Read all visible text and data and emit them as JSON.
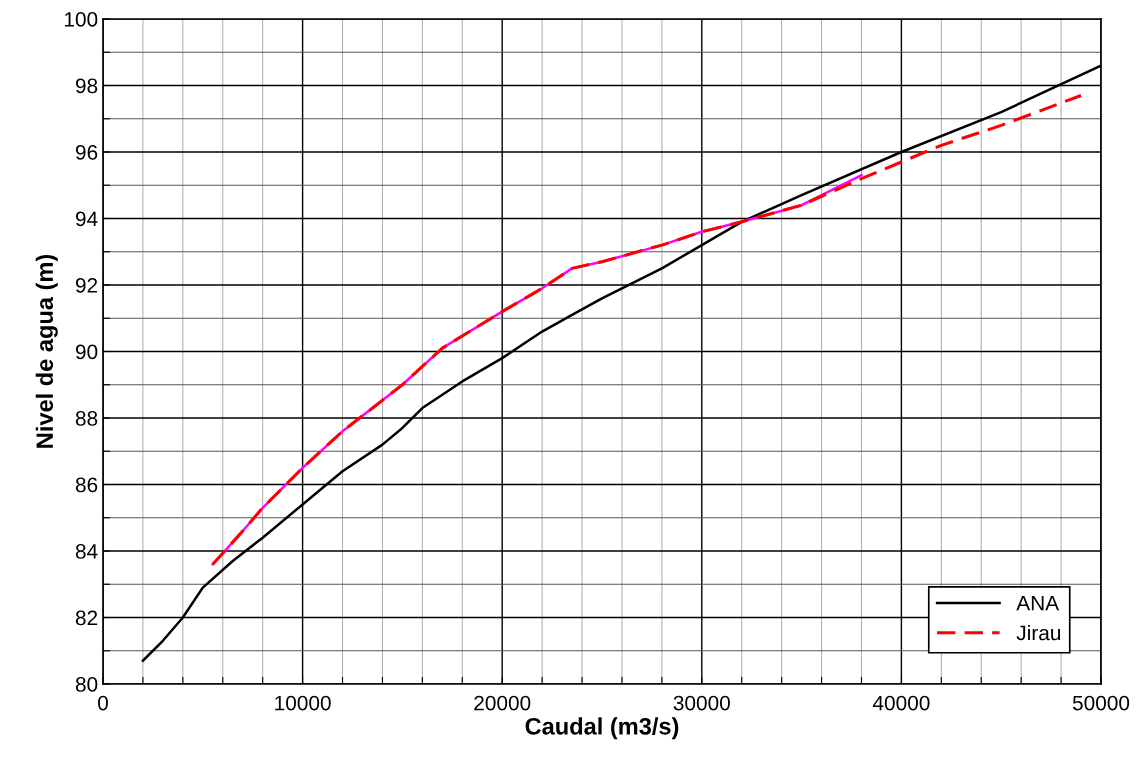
{
  "chart_data": {
    "type": "line",
    "xlabel": "Caudal (m3/s)",
    "ylabel": "Nivel de agua (m)",
    "xlim": [
      0,
      50000
    ],
    "ylim": [
      80,
      100
    ],
    "xticks": [
      0,
      {
        "value": 2000,
        "label": null
      },
      {
        "value": 4000,
        "label": null
      },
      {
        "value": 6000,
        "label": null
      },
      {
        "value": 8000,
        "label": null
      },
      10000,
      {
        "value": 12000,
        "label": null
      },
      {
        "value": 14000,
        "label": null
      },
      {
        "value": 16000,
        "label": null
      },
      {
        "value": 18000,
        "label": null
      },
      20000,
      {
        "value": 22000,
        "label": null
      },
      {
        "value": 24000,
        "label": null
      },
      {
        "value": 26000,
        "label": null
      },
      {
        "value": 28000,
        "label": null
      },
      30000,
      {
        "value": 32000,
        "label": null
      },
      {
        "value": 34000,
        "label": null
      },
      {
        "value": 36000,
        "label": null
      },
      {
        "value": 38000,
        "label": null
      },
      40000,
      {
        "value": 42000,
        "label": null
      },
      {
        "value": 44000,
        "label": null
      },
      {
        "value": 46000,
        "label": null
      },
      {
        "value": 48000,
        "label": null
      },
      50000
    ],
    "yticks": [
      80,
      {
        "value": 81,
        "label": null
      },
      82,
      {
        "value": 83,
        "label": null
      },
      84,
      {
        "value": 85,
        "label": null
      },
      86,
      {
        "value": 87,
        "label": null
      },
      88,
      {
        "value": 89,
        "label": null
      },
      90,
      {
        "value": 91,
        "label": null
      },
      92,
      {
        "value": 93,
        "label": null
      },
      94,
      {
        "value": 95,
        "label": null
      },
      96,
      {
        "value": 97,
        "label": null
      },
      98,
      {
        "value": 99,
        "label": null
      },
      100
    ],
    "grid": true,
    "legend": "bottom right",
    "marker": "none",
    "series": [
      {
        "name": "ANA",
        "color": "#000000",
        "line_style": "solid",
        "x": [
          2000,
          3000,
          4000,
          5000,
          6500,
          8000,
          10000,
          12000,
          14000,
          15000,
          16000,
          18000,
          20000,
          22000,
          23500,
          25000,
          28000,
          30000,
          32000,
          35000,
          40000,
          45000,
          50000
        ],
        "values": [
          80.7,
          81.3,
          82.0,
          82.9,
          83.7,
          84.4,
          85.4,
          86.4,
          87.2,
          87.7,
          88.3,
          89.1,
          89.8,
          90.6,
          91.1,
          91.6,
          92.5,
          93.2,
          93.9,
          94.7,
          96.0,
          97.2,
          98.6
        ]
      },
      {
        "color": "#ff00ff",
        "line_style": "solid",
        "x": [
          5500,
          7000,
          8000,
          10000,
          12000,
          15000,
          17000,
          20000,
          22000,
          23500,
          25000,
          28000,
          30000,
          32000,
          35000,
          38000
        ],
        "values": [
          83.6,
          84.6,
          85.3,
          86.5,
          87.6,
          89.0,
          90.1,
          91.2,
          91.9,
          92.5,
          92.7,
          93.2,
          93.6,
          93.9,
          94.4,
          95.3
        ]
      },
      {
        "name": "Jirau",
        "color": "#ff0000",
        "line_style": "dashed",
        "x": [
          5500,
          7000,
          8000,
          10000,
          12000,
          15000,
          17000,
          20000,
          22000,
          23500,
          25000,
          28000,
          30000,
          32000,
          35000,
          38000,
          40000,
          42000,
          45000,
          49000
        ],
        "values": [
          83.6,
          84.6,
          85.3,
          86.5,
          87.6,
          89.0,
          90.1,
          91.2,
          91.9,
          92.5,
          92.7,
          93.2,
          93.6,
          93.9,
          94.4,
          95.2,
          95.7,
          96.2,
          96.8,
          97.7
        ]
      }
    ]
  }
}
